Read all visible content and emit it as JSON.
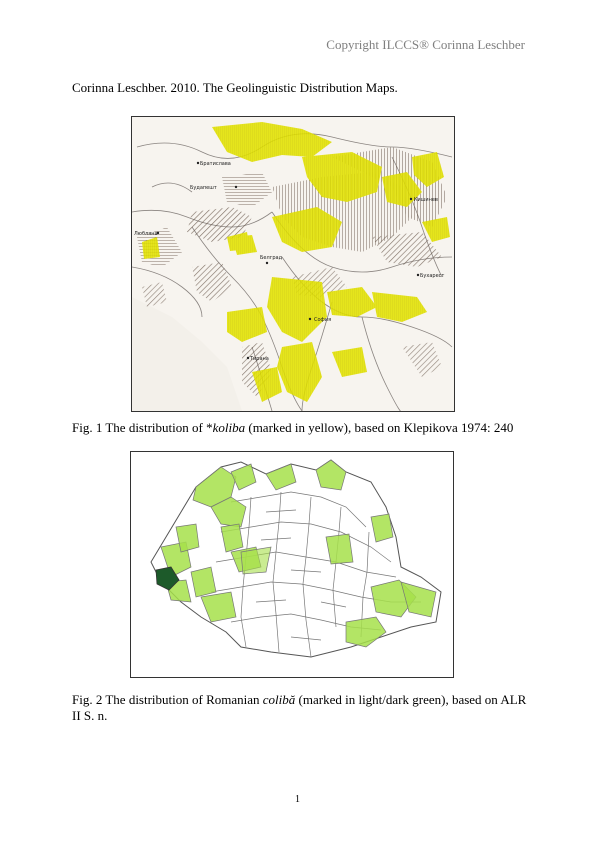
{
  "header": {
    "copyright": "Copyright ILCCS® Corinna Leschber"
  },
  "citation": "Corinna Leschber. 2010. The Geolinguistic Distribution Maps.",
  "figure1": {
    "caption_prefix": "Fig. 1 The distribution of *",
    "caption_term": "koliba",
    "caption_suffix": " (marked in yellow), based on Klepikova 1974: 240",
    "highlight_color": "#e3e300",
    "hatch_color": "#6b5a4e",
    "place_labels": [
      "Братислава",
      "Будапешт",
      "Любляна",
      "Белград",
      "Бухарест",
      "Кишинев",
      "София",
      "Тирана"
    ]
  },
  "figure2": {
    "caption_prefix": "Fig. 2 The distribution of Romanian ",
    "caption_term": "colibă",
    "caption_suffix": " (marked in light/dark green), based on ALR II S. n.",
    "light_green": "#a6e04a",
    "dark_green": "#1d5a2a"
  },
  "footer": {
    "page_number": "1"
  }
}
